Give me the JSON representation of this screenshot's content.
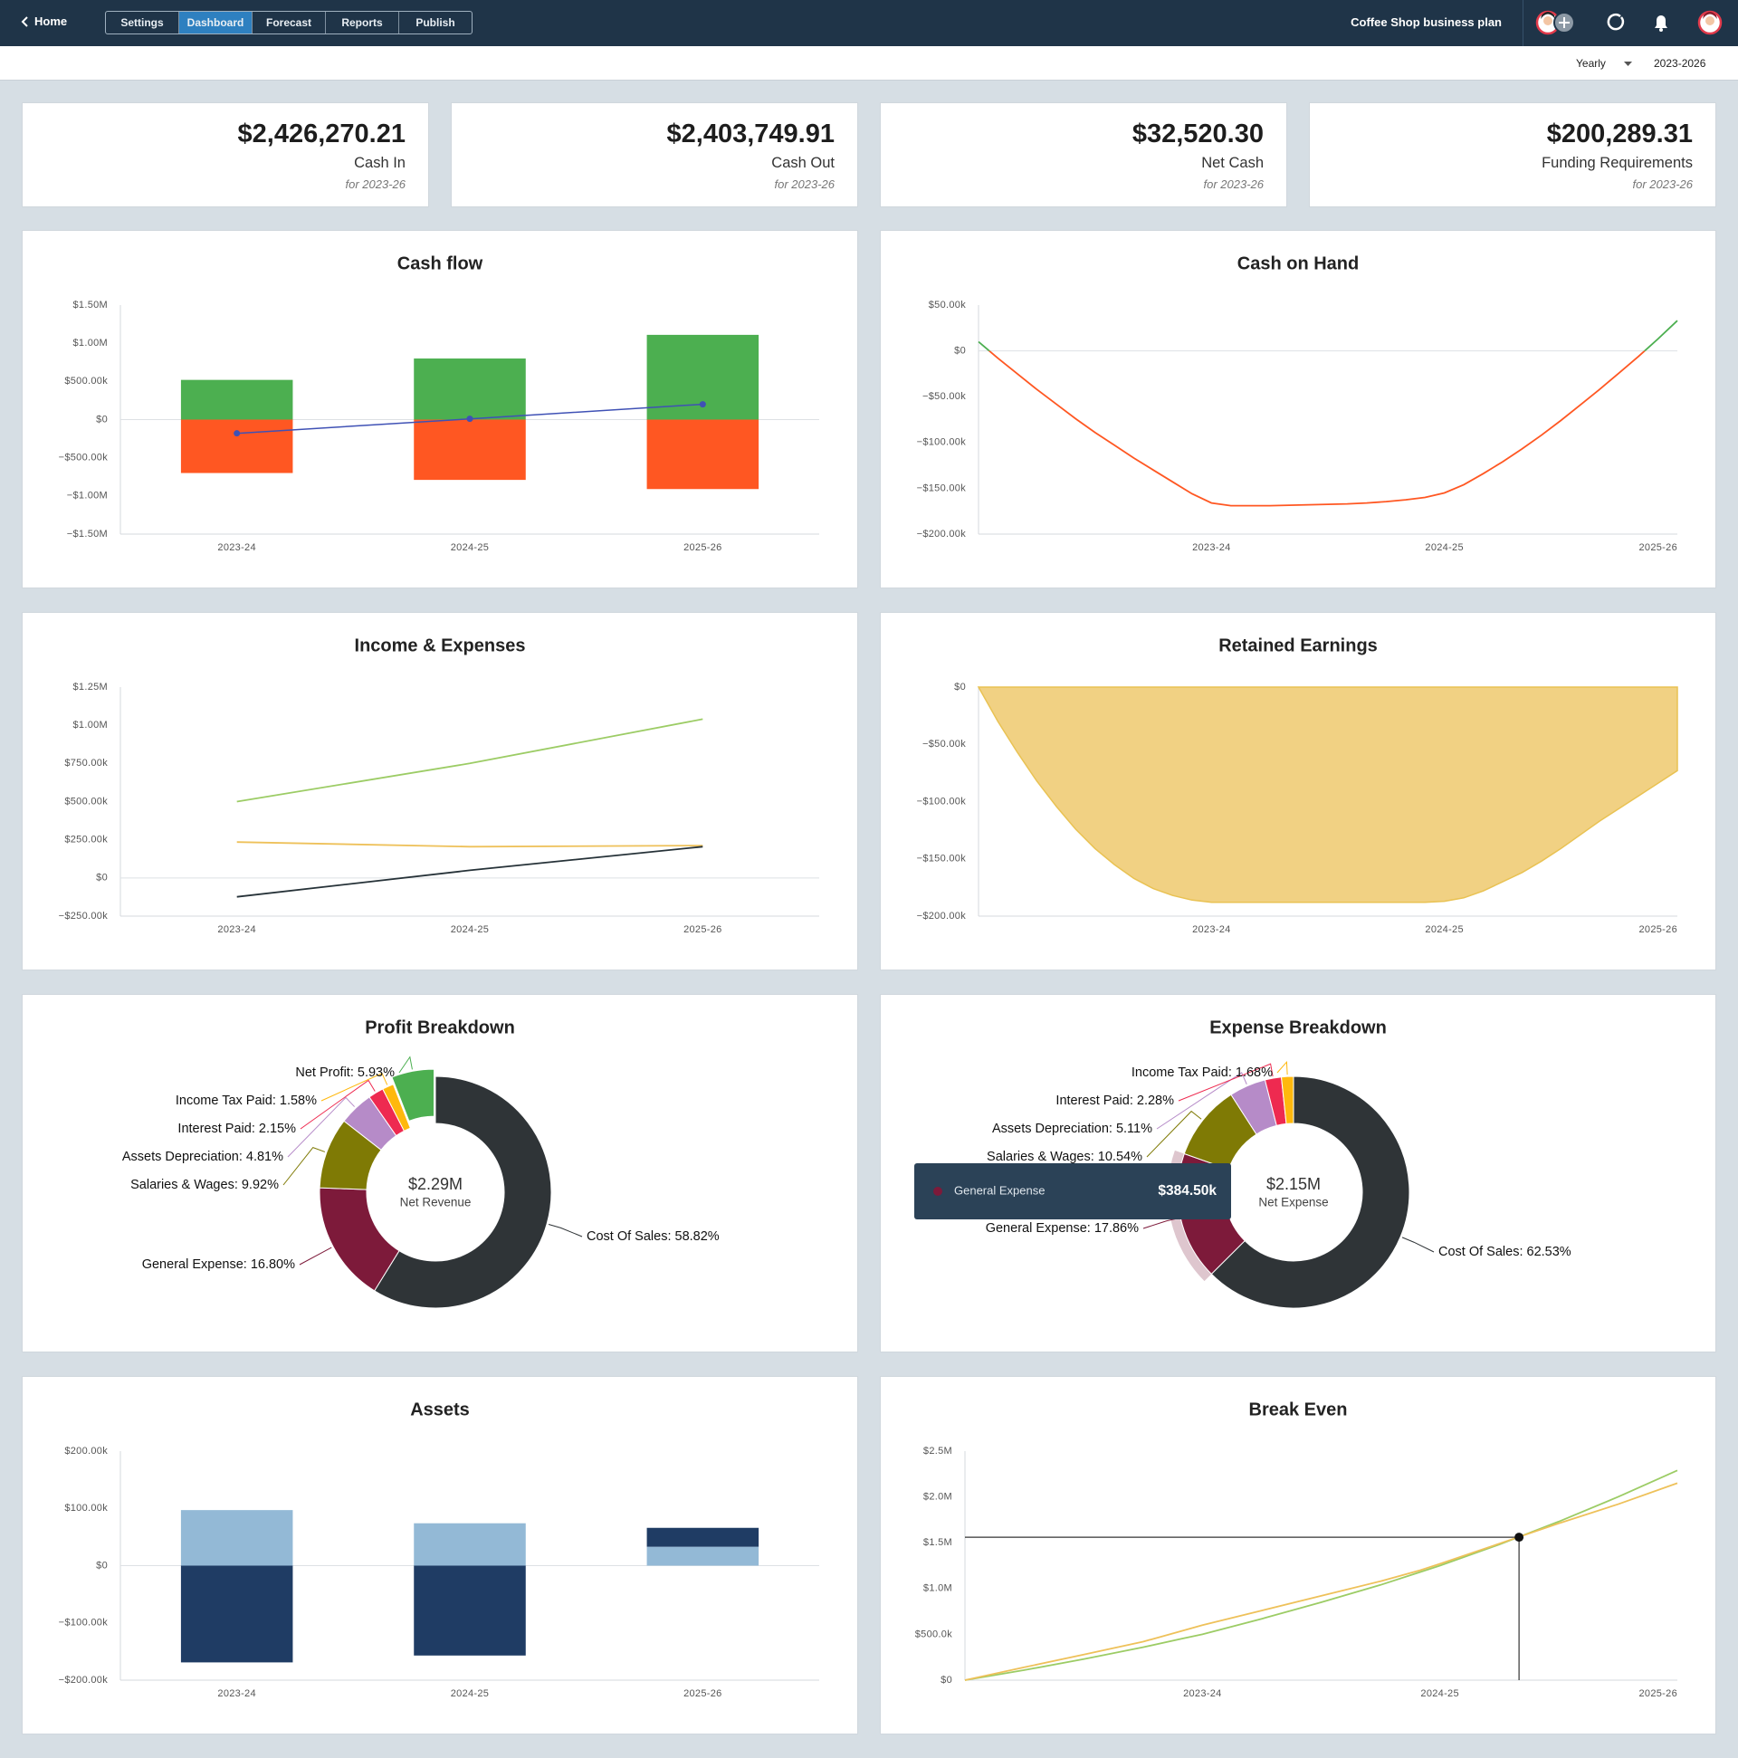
{
  "header": {
    "back": "Home",
    "tabs": [
      "Settings",
      "Dashboard",
      "Forecast",
      "Reports",
      "Publish"
    ],
    "active_tab": 1,
    "plan_title": "Coffee Shop business plan",
    "period": "Yearly",
    "range": "2023-2026"
  },
  "kpis": [
    {
      "value": "$2,426,270.21",
      "label": "Cash In",
      "note": "for 2023-26"
    },
    {
      "value": "$2,403,749.91",
      "label": "Cash Out",
      "note": "for 2023-26"
    },
    {
      "value": "$32,520.30",
      "label": "Net Cash",
      "note": "for 2023-26"
    },
    {
      "value": "$200,289.31",
      "label": "Funding Requirements",
      "note": "for 2023-26"
    }
  ],
  "chart_data": [
    {
      "type": "bar",
      "stacked": true,
      "title": "Cash flow",
      "categories": [
        "2023-24",
        "2024-25",
        "2025-26"
      ],
      "series": [
        {
          "color": "#4caf50",
          "values": [
            520000,
            800000,
            1110000
          ]
        },
        {
          "color": "#ff5722",
          "values": [
            -700000,
            -790000,
            -910000
          ]
        },
        {
          "type": "line",
          "color": "#3f51b5",
          "values": [
            -180000,
            10000,
            200000
          ]
        }
      ],
      "ylim": [
        -1500000,
        1500000
      ],
      "yticks": [
        {
          "value": -1500000,
          "label": "−$1.50M"
        },
        {
          "value": -1000000,
          "label": "−$1.00M"
        },
        {
          "value": -500000,
          "label": "−$500.00k"
        },
        {
          "value": 0,
          "label": "$0"
        },
        {
          "value": 500000,
          "label": "$500.00k"
        },
        {
          "value": 1000000,
          "label": "$1.00M"
        },
        {
          "value": 1500000,
          "label": "$1.50M"
        }
      ]
    },
    {
      "type": "line",
      "title": "Cash on Hand",
      "x": [
        0,
        1,
        2,
        3,
        4,
        5,
        6,
        7,
        8,
        9,
        10,
        11,
        12,
        13,
        14,
        15,
        16,
        17,
        18,
        19,
        20,
        21,
        22,
        23,
        24,
        25,
        26,
        27,
        28,
        29,
        30,
        31,
        32,
        33,
        34,
        35,
        36
      ],
      "xlim": [
        0,
        36
      ],
      "xticks": [
        {
          "value": 12,
          "label": "2023-24"
        },
        {
          "value": 24,
          "label": "2024-25"
        },
        {
          "value": 36,
          "label": "2025-26"
        }
      ],
      "series": [
        {
          "color": "#ff5722",
          "positive_color": "#4caf50",
          "values": [
            10000,
            -8000,
            -25000,
            -42000,
            -58000,
            -74000,
            -89000,
            -103000,
            -117000,
            -130000,
            -143000,
            -156000,
            -166000,
            -169000,
            -169000,
            -169000,
            -168500,
            -168000,
            -167500,
            -167000,
            -166000,
            -164500,
            -162500,
            -160000,
            -155000,
            -146000,
            -134000,
            -121000,
            -107000,
            -92000,
            -76000,
            -59000,
            -42000,
            -24000,
            -6000,
            13000,
            33000
          ]
        }
      ],
      "ylim": [
        -200000,
        50000
      ],
      "yticks": [
        {
          "value": -200000,
          "label": "−$200.00k"
        },
        {
          "value": -150000,
          "label": "−$150.00k"
        },
        {
          "value": -100000,
          "label": "−$100.00k"
        },
        {
          "value": -50000,
          "label": "−$50.00k"
        },
        {
          "value": 0,
          "label": "$0"
        },
        {
          "value": 50000,
          "label": "$50.00k"
        }
      ]
    },
    {
      "type": "line",
      "title": "Income & Expenses",
      "categories": [
        "2023-24",
        "2024-25",
        "2025-26"
      ],
      "series": [
        {
          "color": "#9ccc65",
          "values": [
            500000,
            750000,
            1040000
          ]
        },
        {
          "color": "#eec15a",
          "values": [
            235000,
            205000,
            212000
          ]
        },
        {
          "color": "#263238",
          "values": [
            -124000,
            50000,
            205000
          ]
        }
      ],
      "ylim": [
        -250000,
        1250000
      ],
      "yticks": [
        {
          "value": -250000,
          "label": "−$250.00k"
        },
        {
          "value": 0,
          "label": "$0"
        },
        {
          "value": 250000,
          "label": "$250.00k"
        },
        {
          "value": 500000,
          "label": "$500.00k"
        },
        {
          "value": 750000,
          "label": "$750.00k"
        },
        {
          "value": 1000000,
          "label": "$1.00M"
        },
        {
          "value": 1250000,
          "label": "$1.25M"
        }
      ]
    },
    {
      "type": "area",
      "title": "Retained Earnings",
      "x": [
        0,
        1,
        2,
        3,
        4,
        5,
        6,
        7,
        8,
        9,
        10,
        11,
        12,
        13,
        14,
        15,
        16,
        17,
        18,
        19,
        20,
        21,
        22,
        23,
        24,
        25,
        26,
        27,
        28,
        29,
        30,
        31,
        32,
        33,
        34,
        35,
        36
      ],
      "xlim": [
        0,
        36
      ],
      "xticks": [
        {
          "value": 12,
          "label": "2023-24"
        },
        {
          "value": 24,
          "label": "2024-25"
        },
        {
          "value": 36,
          "label": "2025-26"
        }
      ],
      "values": [
        0,
        -30000,
        -57000,
        -82000,
        -104000,
        -124000,
        -141000,
        -155000,
        -167000,
        -176000,
        -182000,
        -186000,
        -188000,
        -188000,
        -188000,
        -188000,
        -188000,
        -188000,
        -188000,
        -188000,
        -188000,
        -188000,
        -188000,
        -188000,
        -187000,
        -184000,
        -178000,
        -170000,
        -162000,
        -152000,
        -141000,
        -129000,
        -117000,
        -106000,
        -95000,
        -84000,
        -73000
      ],
      "color": "#f1d183",
      "line_color": "#e9c253",
      "ylim": [
        -200000,
        0
      ],
      "yticks": [
        {
          "value": -200000,
          "label": "−$200.00k"
        },
        {
          "value": -150000,
          "label": "−$150.00k"
        },
        {
          "value": -100000,
          "label": "−$100.00k"
        },
        {
          "value": -50000,
          "label": "−$50.00k"
        },
        {
          "value": 0,
          "label": "$0"
        }
      ]
    },
    {
      "type": "donut",
      "title": "Profit Breakdown",
      "values": [
        58.82,
        16.8,
        9.92,
        4.81,
        2.15,
        1.58,
        5.93
      ],
      "value_labels": [
        "Cost Of Sales: 58.82%",
        "General Expense: 16.80%",
        "Salaries & Wages: 9.92%",
        "Assets Depreciation: 4.81%",
        "Interest Paid: 2.15%",
        "Income Tax Paid: 1.58%",
        "Net Profit: 5.93%"
      ],
      "colors": [
        "#2f3437",
        "#7d1a3a",
        "#7f7a05",
        "#b68bc8",
        "#ee2a50",
        "#ffb80d",
        "#4caf50"
      ],
      "explode": 6,
      "center_value": "$2.29M",
      "center_label": "Net Revenue"
    },
    {
      "type": "donut",
      "title": "Expense Breakdown",
      "values": [
        62.53,
        17.86,
        10.54,
        5.11,
        2.28,
        1.68
      ],
      "value_labels": [
        "Cost Of Sales: 62.53%",
        "General Expense: 17.86%",
        "Salaries & Wages: 10.54%",
        "Assets Depreciation: 5.11%",
        "Interest Paid: 2.28%",
        "Income Tax Paid: 1.68%"
      ],
      "colors": [
        "#2f3437",
        "#7d1a3a",
        "#7f7a05",
        "#b68bc8",
        "#ee2a50",
        "#ffb80d"
      ],
      "center_value": "$2.15M",
      "center_label": "Net Expense",
      "tooltip": {
        "slice": 1,
        "label": "General Expense",
        "text": "$384.50k"
      }
    },
    {
      "type": "bar",
      "stacked": true,
      "title": "Assets",
      "categories": [
        "2023-24",
        "2024-25",
        "2025-26"
      ],
      "series": [
        {
          "color": "#93b9d6",
          "values": [
            97000,
            74000,
            33000
          ]
        },
        {
          "color": "#1f3c64",
          "values": [
            -169000,
            -157000,
            33000
          ]
        }
      ],
      "ylim": [
        -200000,
        200000
      ],
      "yticks": [
        {
          "value": -200000,
          "label": "−$200.00k"
        },
        {
          "value": -100000,
          "label": "−$100.00k"
        },
        {
          "value": 0,
          "label": "$0"
        },
        {
          "value": 100000,
          "label": "$100.00k"
        },
        {
          "value": 200000,
          "label": "$200.00k"
        }
      ]
    },
    {
      "type": "line",
      "title": "Break Even",
      "x": [
        0,
        3,
        6,
        9,
        11,
        12,
        15,
        18,
        21,
        23,
        24,
        27,
        30,
        33,
        36
      ],
      "xlim": [
        0,
        36
      ],
      "xticks": [
        {
          "value": 12,
          "label": "2023-24"
        },
        {
          "value": 24,
          "label": "2024-25"
        },
        {
          "value": 36,
          "label": "2025-26"
        }
      ],
      "series": [
        {
          "color": "#9ccc65",
          "values": [
            0,
            110000,
            230000,
            360000,
            455000,
            500000,
            670000,
            850000,
            1040000,
            1180000,
            1250000,
            1480000,
            1730000,
            2000000,
            2290000
          ]
        },
        {
          "color": "#eec15a",
          "values": [
            0,
            140000,
            280000,
            420000,
            540000,
            600000,
            760000,
            920000,
            1080000,
            1200000,
            1270000,
            1490000,
            1710000,
            1920000,
            2150000
          ]
        }
      ],
      "break_even": {
        "x": 28,
        "y": 1560000
      },
      "ylim": [
        0,
        2500000
      ],
      "yticks": [
        {
          "value": 0,
          "label": "$0"
        },
        {
          "value": 500000,
          "label": "$500.0k"
        },
        {
          "value": 1000000,
          "label": "$1.0M"
        },
        {
          "value": 1500000,
          "label": "$1.5M"
        },
        {
          "value": 2000000,
          "label": "$2.0M"
        },
        {
          "value": 2500000,
          "label": "$2.5M"
        }
      ]
    }
  ]
}
